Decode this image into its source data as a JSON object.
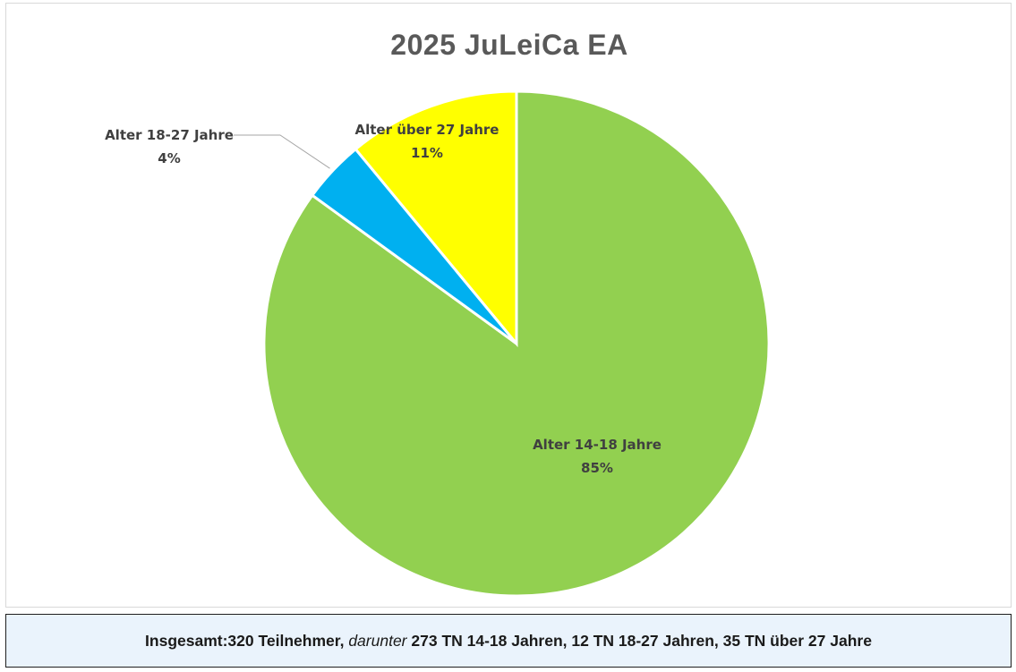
{
  "chart_data": {
    "type": "pie",
    "title": "2025 JuLeiCa EA",
    "slices": [
      {
        "name": "Alter 14-18 Jahre",
        "value": 85,
        "label": "85%",
        "color": "#92d050"
      },
      {
        "name": "Alter 18-27 Jahre",
        "value": 4,
        "label": "4%",
        "color": "#00b0f0"
      },
      {
        "name": "Alter über 27 Jahre",
        "value": 11,
        "label": "11%",
        "color": "#ffff00"
      }
    ]
  },
  "caption": {
    "part1": "Insgesamt:320 Teilnehmer,",
    "part2": "darunter",
    "part3": "273 TN 14-18 Jahren, 12 TN 18-27 Jahren, 35 TN über 27 Jahre"
  }
}
